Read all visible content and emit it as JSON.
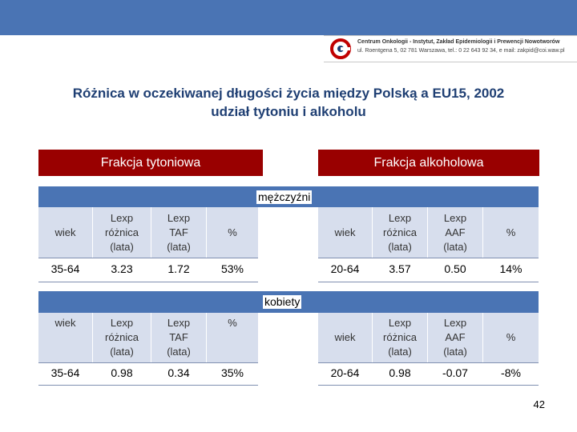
{
  "header": {
    "institute_line1": "Centrum Onkologii - Instytut, Zakład Epidemiologii i Prewencji Nowotworów",
    "institute_line2": "ul. Roentgena 5, 02 781 Warszawa, tel.: 0 22 643 92 34, e mail: zakpid@coi.waw.pl"
  },
  "title": {
    "line1": "Różnica w oczekiwanej długości życia między Polską a EU15, 2002",
    "line2": "udział tytoniu i alkoholu"
  },
  "fractions": {
    "tobacco": "Frakcja tytoniowa",
    "alcohol": "Frakcja alkoholowa"
  },
  "men": {
    "label": "mężczyźni",
    "tobacco": {
      "headers": [
        "wiek",
        "Lexp różnica (lata)",
        "Lexp TAF (lata)",
        "%"
      ],
      "header_lines": [
        [
          "wiek"
        ],
        [
          "Lexp",
          "różnica",
          "(lata)"
        ],
        [
          "Lexp",
          "TAF",
          "(lata)"
        ],
        [
          "%"
        ]
      ],
      "row": [
        "35-64",
        "3.23",
        "1.72",
        "53%"
      ]
    },
    "alcohol": {
      "header_lines": [
        [
          "wiek"
        ],
        [
          "Lexp",
          "różnica",
          "(lata)"
        ],
        [
          "Lexp",
          "AAF",
          "(lata)"
        ],
        [
          "%"
        ]
      ],
      "row": [
        "20-64",
        "3.57",
        "0.50",
        "14%"
      ]
    }
  },
  "women": {
    "label": "kobiety",
    "tobacco": {
      "header_lines": [
        [
          "wiek"
        ],
        [
          "Lexp",
          "różnica",
          "(lata)"
        ],
        [
          "Lexp",
          "TAF",
          "(lata)"
        ],
        [
          "%"
        ]
      ],
      "row": [
        "35-64",
        "0.98",
        "0.34",
        "35%"
      ]
    },
    "alcohol": {
      "header_lines": [
        [
          "wiek"
        ],
        [
          "Lexp",
          "różnica",
          "(lata)"
        ],
        [
          "Lexp",
          "AAF",
          "(lata)"
        ],
        [
          "%"
        ]
      ],
      "row": [
        "20-64",
        "0.98",
        "-0.07",
        "-8%"
      ]
    }
  },
  "page_number": "42",
  "colors": {
    "band": "#4a74b4",
    "fraction_header": "#990000",
    "cell_bg": "#d7deed",
    "title": "#1f3f73"
  }
}
